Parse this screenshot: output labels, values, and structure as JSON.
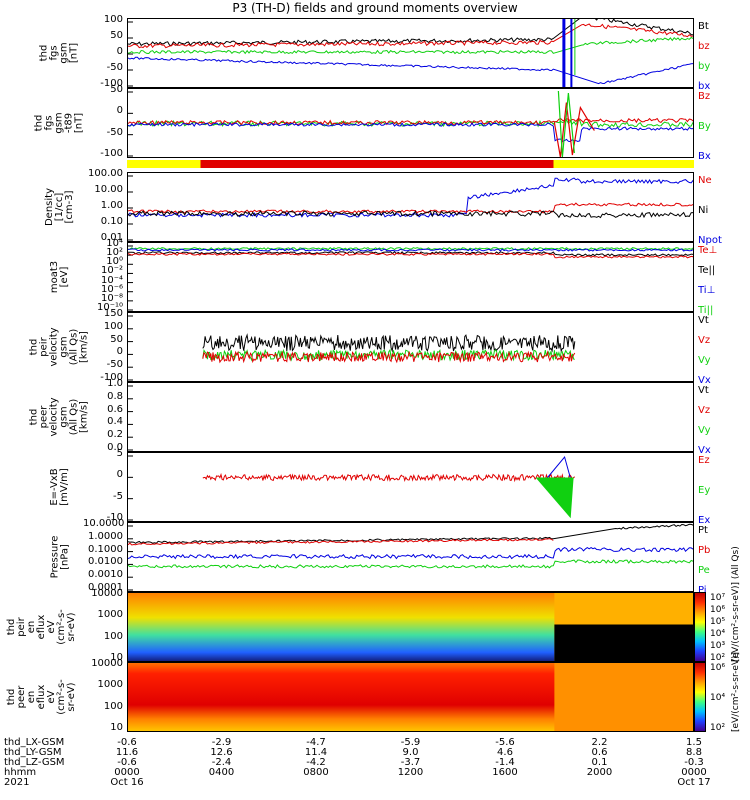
{
  "title": "P3 (TH-D) fields and ground moments overview",
  "colors": {
    "black": "#000000",
    "red": "#e00000",
    "green": "#10d010",
    "blue": "#0000e0",
    "yellow": "#ffff00"
  },
  "chart_data": [
    {
      "type": "line",
      "ylabel": [
        "thd",
        "fgs",
        "gsm",
        "[nT]"
      ],
      "yticks": [
        "100",
        "50",
        "0",
        "-50",
        "-100"
      ],
      "ylim": [
        -100,
        100
      ],
      "legend": [
        {
          "name": "Bt",
          "color": "#000000"
        },
        {
          "name": "bz",
          "color": "#e00000"
        },
        {
          "name": "by",
          "color": "#10d010"
        },
        {
          "name": "bx",
          "color": "#0000e0"
        }
      ]
    },
    {
      "type": "line",
      "ylabel": [
        "thd",
        "fgs",
        "gsm",
        "-t89",
        "[nT]"
      ],
      "yticks": [
        "50",
        "0",
        "-50",
        "-100"
      ],
      "ylim": [
        -125,
        75
      ],
      "legend": [
        {
          "name": "Bz",
          "color": "#e00000"
        },
        {
          "name": "By",
          "color": "#10d010"
        },
        {
          "name": "Bx",
          "color": "#0000e0"
        }
      ]
    },
    {
      "type": "line",
      "ylabel": [
        "Density",
        "[1/cc]",
        "[cm-3]"
      ],
      "yticks": [
        "100.00",
        "10.00",
        "1.00",
        "0.10",
        "0.01"
      ],
      "scale": "log",
      "legend": [
        {
          "name": "Ne",
          "color": "#e00000"
        },
        {
          "name": "Ni",
          "color": "#000000"
        },
        {
          "name": "Npot",
          "color": "#0000e0"
        }
      ]
    },
    {
      "type": "line",
      "ylabel": [
        "moat3",
        "[eV]"
      ],
      "yticks": [
        "10⁴",
        "10²",
        "10⁰",
        "10⁻²",
        "10⁻⁴",
        "10⁻⁶",
        "10⁻⁸",
        "10⁻¹⁰"
      ],
      "scale": "log",
      "legend": [
        {
          "name": "Te⊥",
          "color": "#e00000"
        },
        {
          "name": "Te||",
          "color": "#000000"
        },
        {
          "name": "Ti⊥",
          "color": "#0000e0"
        },
        {
          "name": "Ti||",
          "color": "#10d010"
        }
      ]
    },
    {
      "type": "line",
      "ylabel": [
        "thd",
        "peir",
        "velocity",
        "gsm",
        "(All Qs)",
        "[km/s]"
      ],
      "yticks": [
        "150",
        "100",
        "50",
        "0",
        "-50",
        "-100"
      ],
      "ylim": [
        -100,
        150
      ],
      "legend": [
        {
          "name": "Vt",
          "color": "#000000"
        },
        {
          "name": "Vz",
          "color": "#e00000"
        },
        {
          "name": "Vy",
          "color": "#10d010"
        },
        {
          "name": "Vx",
          "color": "#0000e0"
        }
      ]
    },
    {
      "type": "line",
      "ylabel": [
        "thd",
        "peer",
        "velocity",
        "gsm",
        "(All Qs)",
        "[km/s]"
      ],
      "yticks": [
        "1.0",
        "0.8",
        "0.6",
        "0.4",
        "0.2",
        "0.0"
      ],
      "ylim": [
        0,
        1
      ],
      "legend": [
        {
          "name": "Vt",
          "color": "#000000"
        },
        {
          "name": "Vz",
          "color": "#e00000"
        },
        {
          "name": "Vy",
          "color": "#10d010"
        },
        {
          "name": "Vx",
          "color": "#0000e0"
        }
      ]
    },
    {
      "type": "line",
      "ylabel": [
        "E=-VxB",
        "[mV/m]"
      ],
      "yticks": [
        "5",
        "0",
        "-5",
        "-10"
      ],
      "ylim": [
        -10,
        10
      ],
      "legend": [
        {
          "name": "Ez",
          "color": "#e00000"
        },
        {
          "name": "Ey",
          "color": "#10d010"
        },
        {
          "name": "Ex",
          "color": "#0000e0"
        }
      ]
    },
    {
      "type": "line",
      "ylabel": [
        "Pressure",
        "[nPa]"
      ],
      "yticks": [
        "10.0000",
        "1.0000",
        "0.1000",
        "0.0100",
        "0.0010",
        "0.0001"
      ],
      "scale": "log",
      "legend": [
        {
          "name": "Pt",
          "color": "#000000"
        },
        {
          "name": "Pb",
          "color": "#e00000"
        },
        {
          "name": "Pe",
          "color": "#10d010"
        },
        {
          "name": "Pi",
          "color": "#0000e0"
        }
      ]
    },
    {
      "type": "heatmap",
      "ylabel": [
        "thd",
        "peir",
        "en",
        "eflux",
        "eV",
        "(cm²-s-",
        "sr-eV)"
      ],
      "yticks": [
        "10000",
        "1000",
        "100",
        "10"
      ],
      "colorbar_ticks": [
        "10⁷",
        "10⁶",
        "10⁵",
        "10⁴",
        "10³",
        "10²"
      ],
      "colorbar_label": "[eV/(cm²-s-sr-eV)] (All Qs)"
    },
    {
      "type": "heatmap",
      "ylabel": [
        "thd",
        "peer",
        "en",
        "eflux",
        "eV",
        "(cm²-s-",
        "sr-eV)"
      ],
      "yticks": [
        "10000",
        "1000",
        "100",
        "10"
      ],
      "colorbar_ticks": [
        "10⁶",
        "10⁴",
        "10²"
      ],
      "colorbar_label": "[eV/(cm²-s-sr-eV)]"
    }
  ],
  "xaxis": {
    "row_labels": [
      "thd_LX-GSM",
      "thd_LY-GSM",
      "thd_LZ-GSM",
      "hhmm",
      "2021"
    ],
    "columns": [
      {
        "vals": [
          "-0.6",
          "11.6",
          "-0.6",
          "0000",
          "Oct 16"
        ]
      },
      {
        "vals": [
          "-2.9",
          "12.6",
          "-2.4",
          "0400",
          ""
        ]
      },
      {
        "vals": [
          "-4.7",
          "11.4",
          "-4.2",
          "0800",
          ""
        ]
      },
      {
        "vals": [
          "-5.9",
          "9.0",
          "-3.7",
          "1200",
          ""
        ]
      },
      {
        "vals": [
          "-5.6",
          "4.6",
          "-1.4",
          "1600",
          ""
        ]
      },
      {
        "vals": [
          "2.2",
          "0.6",
          "0.1",
          "2000",
          ""
        ]
      },
      {
        "vals": [
          "1.5",
          "8.8",
          "-0.3",
          "0000",
          "Oct 17"
        ]
      }
    ]
  }
}
